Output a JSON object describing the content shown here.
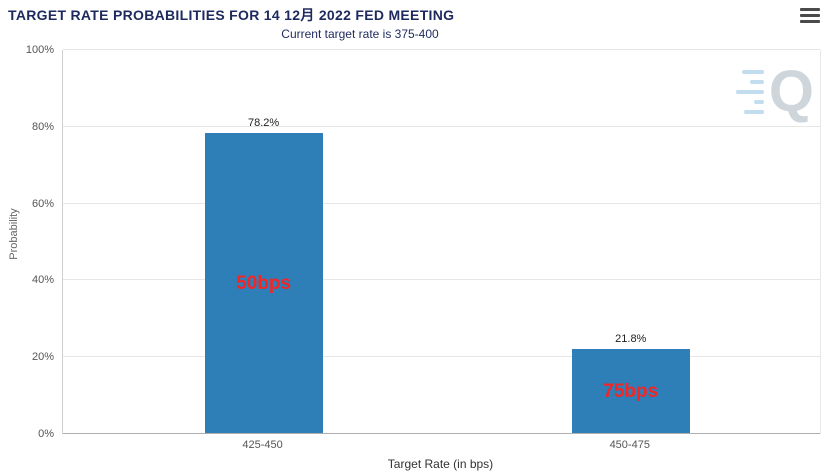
{
  "header": {
    "menu_icon": "hamburger-menu-icon"
  },
  "watermark": {
    "letter": "Q"
  },
  "chart_data": {
    "type": "bar",
    "title": "TARGET RATE PROBABILITIES FOR 14 12月 2022 FED MEETING",
    "subtitle": "Current target rate is 375-400",
    "categories": [
      "425-450",
      "450-475"
    ],
    "values": [
      78.2,
      21.8
    ],
    "value_labels": [
      "78.2%",
      "21.8%"
    ],
    "bar_annotations": [
      "50bps",
      "75bps"
    ],
    "xlabel": "Target Rate (in bps)",
    "ylabel": "Probability",
    "ylim": [
      0,
      100
    ],
    "yticks": [
      "0%",
      "20%",
      "40%",
      "60%",
      "80%",
      "100%"
    ],
    "ytick_values": [
      0,
      20,
      40,
      60,
      80,
      100
    ],
    "bar_color": "#2e7eb8",
    "annotation_color": "#f42525",
    "grid": true,
    "legend": "none"
  }
}
